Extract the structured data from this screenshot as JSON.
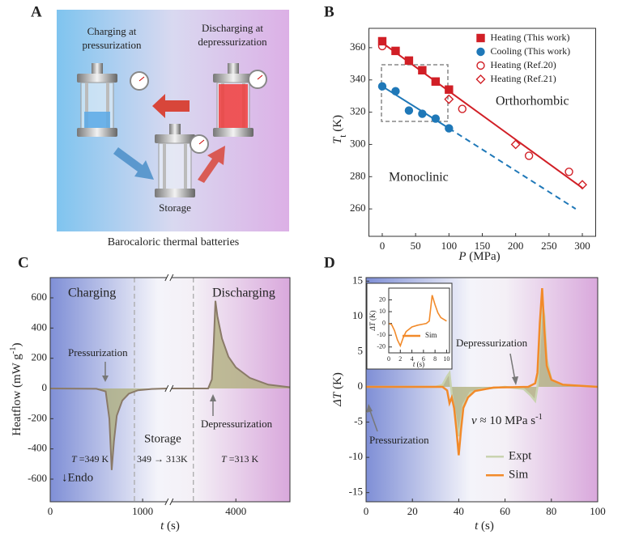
{
  "panel_a": {
    "label": "A",
    "charging": [
      "Charging at",
      "pressurization"
    ],
    "discharging": [
      "Discharging at",
      "depressurization"
    ],
    "storage": "Storage",
    "caption": "Barocaloric thermal batteries"
  },
  "chart_data": [
    {
      "type": "scatter",
      "label": "B",
      "xlabel": {
        "symbol": "P",
        "unit": " (MPa)"
      },
      "ylabel": {
        "symbol": "T",
        "subscript": "t",
        "unit": " (K)"
      },
      "xlim": [
        -20,
        320
      ],
      "ylim": [
        243,
        372
      ],
      "xticks": [
        0,
        50,
        100,
        150,
        200,
        250,
        300
      ],
      "yticks": [
        260,
        280,
        300,
        320,
        340,
        360
      ],
      "legend": "upper right",
      "series": [
        {
          "name": "Heating (This work)",
          "color": "#d11f26",
          "marker": "square",
          "x": [
            0,
            20,
            40,
            60,
            80,
            100
          ],
          "values": [
            364,
            358,
            352,
            346,
            339,
            334
          ]
        },
        {
          "name": "Cooling (This work)",
          "color": "#1f78b8",
          "marker": "circle",
          "x": [
            0,
            20,
            40,
            60,
            80,
            100
          ],
          "values": [
            336,
            333,
            321,
            319,
            316,
            310
          ]
        },
        {
          "name": "Heating (Ref.20)",
          "color": "#d11f26",
          "marker": "open-circle",
          "x": [
            0,
            120,
            220,
            280
          ],
          "values": [
            361,
            322,
            293,
            283
          ]
        },
        {
          "name": "Heating (Ref.21)",
          "color": "#d11f26",
          "marker": "open-diamond",
          "x": [
            100,
            200,
            300
          ],
          "values": [
            328,
            300,
            275
          ]
        }
      ],
      "fit_lines": [
        {
          "color": "#d11f26",
          "style": "solid",
          "x": [
            0,
            300
          ],
          "values": [
            363,
            273
          ]
        },
        {
          "color": "#1f78b8",
          "style": "solid",
          "x": [
            0,
            100
          ],
          "values": [
            336,
            310
          ]
        },
        {
          "color": "#1f78b8",
          "style": "dashed",
          "x": [
            100,
            290
          ],
          "values": [
            310,
            260
          ]
        }
      ],
      "annotations": [
        "Orthorhombic",
        "Monoclinic"
      ]
    },
    {
      "type": "line",
      "label": "C",
      "xlabel": {
        "symbol": "t",
        "unit": " (s)"
      },
      "ylabel": {
        "text": "Heatflow (mW g",
        "sup": "-1",
        "end": ")"
      },
      "xlim": [
        0,
        4585
      ],
      "xbreak": [
        1265,
        3300
      ],
      "xticks": [
        0,
        1000,
        4000
      ],
      "ylim": [
        -750,
        734
      ],
      "yticks": [
        -600,
        -400,
        -200,
        0,
        200,
        400,
        600
      ],
      "phase_boundaries": [
        911,
        3540
      ],
      "series": [
        {
          "color": "#8a7a68",
          "fill": "#aeae78",
          "x": [
            0,
            500,
            600,
            640,
            665,
            690,
            720,
            780,
            850,
            950,
            1100,
            1265
          ],
          "values": [
            0,
            -2,
            -20,
            -200,
            -540,
            -350,
            -180,
            -80,
            -35,
            -12,
            -3,
            0
          ]
        },
        {
          "color": "#8a7a68",
          "fill": "#aeae78",
          "x": [
            3300,
            3700,
            3740,
            3760,
            3779,
            3800,
            3850,
            3920,
            4000,
            4150,
            4350,
            4585
          ],
          "values": [
            0,
            0,
            60,
            300,
            580,
            480,
            330,
            210,
            140,
            70,
            25,
            8
          ]
        }
      ],
      "annotations": {
        "charging": "Charging",
        "discharging": "Discharging",
        "pressurization": "Pressurization",
        "depressurization": "Depressurization",
        "storage": "Storage",
        "storage_temp": "349 → 313K",
        "charge_temp": {
          "symbol": "T",
          "text": " =349 K"
        },
        "discharge_temp": {
          "symbol": "T",
          "text": " =313 K"
        },
        "endo": "↓Endo"
      }
    },
    {
      "type": "line",
      "label": "D",
      "xlabel": {
        "symbol": "t",
        "unit": " (s)"
      },
      "ylabel": {
        "symbol": "ΔT",
        "unit": " (K)"
      },
      "xlim": [
        0,
        100
      ],
      "ylim": [
        -16.3,
        15.5
      ],
      "xticks": [
        0,
        20,
        40,
        60,
        80,
        100
      ],
      "yticks": [
        -15,
        -10,
        -5,
        0,
        5,
        10,
        15
      ],
      "legend": "lower right",
      "series": [
        {
          "name": "Expt",
          "color": "#c9d3b0",
          "fill": "#aeae78",
          "x": [
            0,
            30,
            33,
            35,
            36,
            37,
            38,
            40,
            42,
            45,
            50,
            60,
            68,
            71,
            73,
            74,
            75,
            76,
            77,
            78,
            80,
            85,
            100
          ],
          "values": [
            0,
            0,
            0.3,
            1.5,
            2,
            -1,
            -3,
            -7,
            -2.5,
            -0.8,
            -0.3,
            0,
            -0.3,
            -1.2,
            -2,
            0,
            6,
            12,
            10,
            4,
            1,
            0.3,
            0
          ]
        },
        {
          "name": "Sim",
          "color": "#f28a2a",
          "x": [
            0,
            33,
            35,
            36,
            37,
            38,
            39,
            40,
            41,
            42,
            44,
            47,
            55,
            70,
            73,
            74,
            75,
            76,
            77,
            78,
            80,
            85,
            100
          ],
          "values": [
            0,
            0,
            -0.5,
            -2.3,
            -1.5,
            -3,
            -6,
            -9.7,
            -6,
            -3,
            -1.5,
            -0.6,
            -0.1,
            0,
            0.5,
            2,
            9,
            14,
            8,
            3,
            1,
            0.3,
            0
          ]
        }
      ],
      "annotations": {
        "depressurization": "Depressurization",
        "pressurization": "Pressurization",
        "rate": {
          "symbol": "ν",
          "text": " ≈ 10 MPa s",
          "sup": "-1"
        }
      },
      "inset": {
        "type": "line",
        "xlabel": {
          "symbol": "t",
          "unit": " (s)"
        },
        "ylabel": {
          "symbol": "ΔT",
          "unit": " (K)"
        },
        "xlim": [
          0,
          10.5
        ],
        "ylim": [
          -25,
          30
        ],
        "xticks": [
          0,
          2,
          4,
          6,
          8,
          10
        ],
        "yticks": [
          -20,
          -10,
          0,
          10,
          20
        ],
        "legend": "lower right",
        "series": [
          {
            "name": "Sim",
            "color": "#f28a2a",
            "x": [
              0,
              0.5,
              1,
              1.5,
              2,
              2.5,
              3,
              4,
              5,
              6,
              6.5,
              7,
              7.5,
              8,
              8.5,
              9,
              10
            ],
            "values": [
              0,
              -1,
              -6,
              -14,
              -19,
              -12,
              -7,
              -3,
              -1.5,
              -0.5,
              0,
              2,
              24,
              16,
              9,
              5,
              2
            ]
          }
        ]
      }
    }
  ]
}
